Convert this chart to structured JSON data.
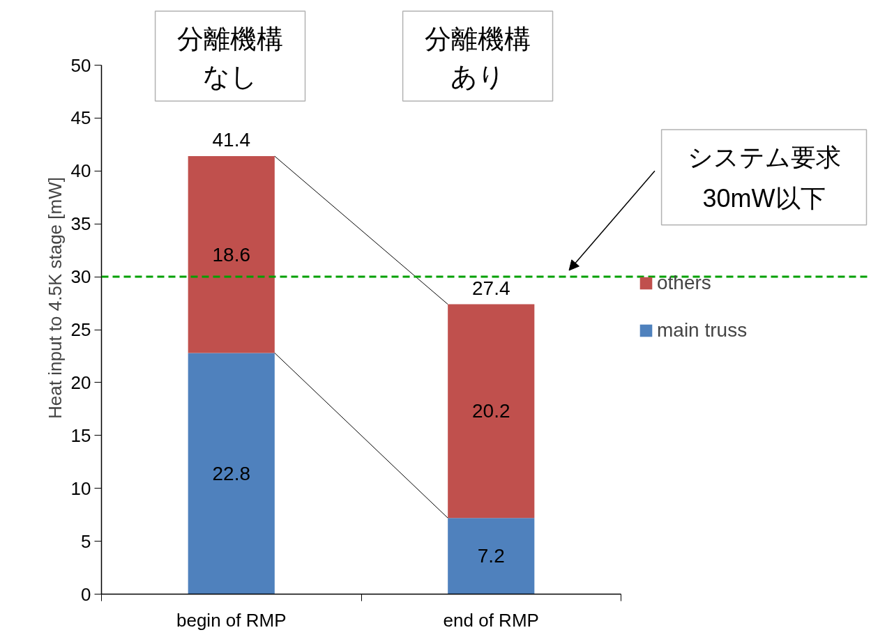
{
  "chart_data": {
    "type": "bar",
    "stacked": true,
    "categories": [
      "begin of RMP",
      "end of RMP"
    ],
    "ylabel": "Heat input to 4.5K stage [mW]",
    "series": [
      {
        "name": "main truss",
        "color": "#4f81bd",
        "values": [
          22.8,
          7.2
        ]
      },
      {
        "name": "others",
        "color": "#c0504d",
        "values": [
          18.6,
          20.2
        ]
      }
    ],
    "totals": [
      "41.4",
      "27.4"
    ],
    "data_labels": true,
    "ylim": [
      0,
      50
    ],
    "yticks": [
      0,
      5,
      10,
      15,
      20,
      25,
      30,
      35,
      40,
      45,
      50
    ],
    "ref_lines": [
      {
        "axis": "y",
        "value": 30,
        "color": "#00a000",
        "line_style": "dashed"
      }
    ],
    "annotations": [
      "分離機構",
      "なし",
      "分離機構",
      "あり",
      "システム要求",
      "30mW以下"
    ],
    "legend": "right",
    "grid": false
  }
}
